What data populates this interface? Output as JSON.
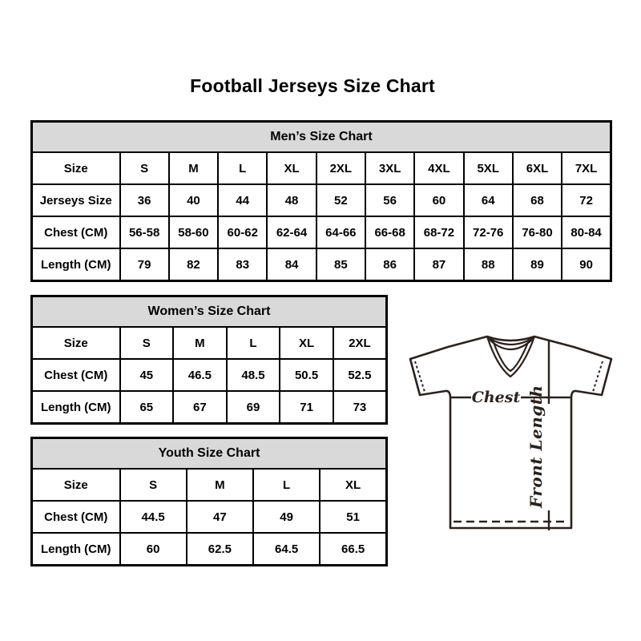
{
  "page": {
    "title": "Football Jerseys Size Chart"
  },
  "tables": [
    {
      "title": "Men’s Size Chart",
      "rows": [
        {
          "label": "Size",
          "values": [
            "S",
            "M",
            "L",
            "XL",
            "2XL",
            "3XL",
            "4XL",
            "5XL",
            "6XL",
            "7XL"
          ]
        },
        {
          "label": "Jerseys Size",
          "values": [
            "36",
            "40",
            "44",
            "48",
            "52",
            "56",
            "60",
            "64",
            "68",
            "72"
          ]
        },
        {
          "label": "Chest (CM)",
          "values": [
            "56-58",
            "58-60",
            "60-62",
            "62-64",
            "64-66",
            "66-68",
            "68-72",
            "72-76",
            "76-80",
            "80-84"
          ]
        },
        {
          "label": "Length (CM)",
          "values": [
            "79",
            "82",
            "83",
            "84",
            "85",
            "86",
            "87",
            "88",
            "89",
            "90"
          ]
        }
      ]
    },
    {
      "title": "Women’s Size Chart",
      "rows": [
        {
          "label": "Size",
          "values": [
            "S",
            "M",
            "L",
            "XL",
            "2XL"
          ]
        },
        {
          "label": "Chest (CM)",
          "values": [
            "45",
            "46.5",
            "48.5",
            "50.5",
            "52.5"
          ]
        },
        {
          "label": "Length (CM)",
          "values": [
            "65",
            "67",
            "69",
            "71",
            "73"
          ]
        }
      ]
    },
    {
      "title": "Youth Size Chart",
      "rows": [
        {
          "label": "Size",
          "values": [
            "S",
            "M",
            "L",
            "XL"
          ]
        },
        {
          "label": "Chest (CM)",
          "values": [
            "44.5",
            "47",
            "49",
            "51"
          ]
        },
        {
          "label": "Length (CM)",
          "values": [
            "60",
            "62.5",
            "64.5",
            "66.5"
          ]
        }
      ]
    }
  ],
  "diagram": {
    "chest_label": "Chest",
    "front_length_label": "Front Length"
  },
  "colors": {
    "header_bg": "#d9d9d9",
    "border": "#000000",
    "diagram_line": "#2a221e"
  }
}
